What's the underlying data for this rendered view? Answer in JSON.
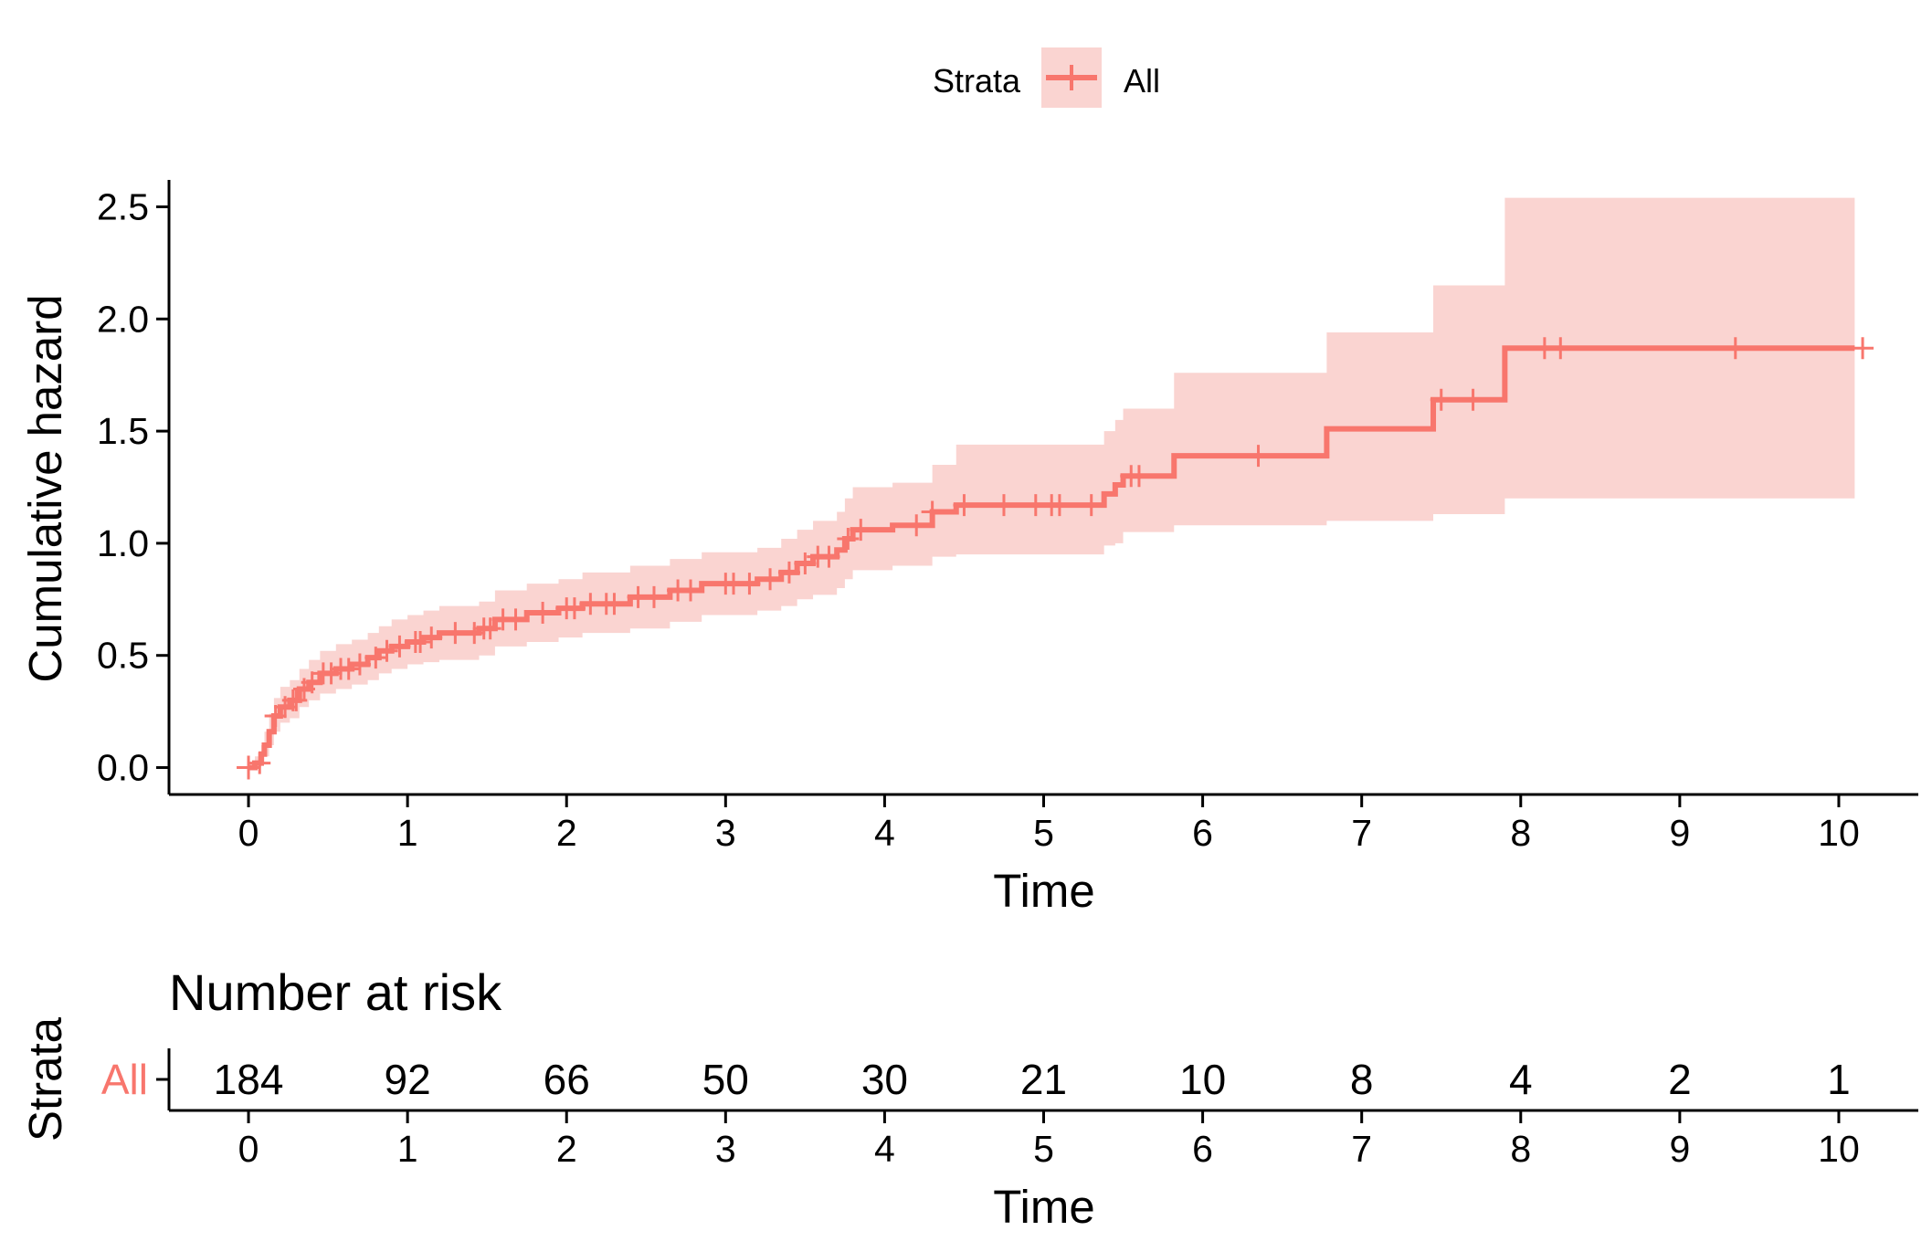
{
  "legend": {
    "title": "Strata",
    "entries": [
      {
        "label": "All",
        "color": "#F8766D"
      }
    ]
  },
  "colors": {
    "line": "#F8766D",
    "ribbon": "#FAD4D1",
    "axis": "#000000"
  },
  "chart_data": {
    "type": "line",
    "subtype": "step",
    "title": "",
    "xlabel": "Time",
    "ylabel": "Cumulative hazard",
    "xlim": [
      -0.5,
      10.5
    ],
    "ylim": [
      -0.12,
      2.62
    ],
    "x_ticks": [
      0,
      1,
      2,
      3,
      4,
      5,
      6,
      7,
      8,
      9,
      10
    ],
    "y_ticks": [
      0,
      0.5,
      1,
      1.5,
      2,
      2.5
    ],
    "y_tick_labels": [
      "0.0",
      "0.5",
      "1.0",
      "1.5",
      "2.0",
      "2.5"
    ],
    "grid": false,
    "legend_position": "top",
    "series": [
      {
        "name": "All",
        "color": "#F8766D",
        "steps": [
          [
            0,
            0
          ],
          [
            0.04,
            0.02
          ],
          [
            0.08,
            0.06
          ],
          [
            0.1,
            0.1
          ],
          [
            0.13,
            0.16
          ],
          [
            0.16,
            0.23
          ],
          [
            0.2,
            0.27
          ],
          [
            0.26,
            0.3
          ],
          [
            0.32,
            0.35
          ],
          [
            0.38,
            0.38
          ],
          [
            0.45,
            0.42
          ],
          [
            0.55,
            0.44
          ],
          [
            0.65,
            0.46
          ],
          [
            0.75,
            0.49
          ],
          [
            0.82,
            0.52
          ],
          [
            0.9,
            0.54
          ],
          [
            1.0,
            0.56
          ],
          [
            1.1,
            0.58
          ],
          [
            1.2,
            0.6
          ],
          [
            1.45,
            0.62
          ],
          [
            1.55,
            0.66
          ],
          [
            1.75,
            0.69
          ],
          [
            1.95,
            0.71
          ],
          [
            2.1,
            0.73
          ],
          [
            2.4,
            0.76
          ],
          [
            2.65,
            0.79
          ],
          [
            2.85,
            0.82
          ],
          [
            3.2,
            0.84
          ],
          [
            3.35,
            0.87
          ],
          [
            3.45,
            0.91
          ],
          [
            3.55,
            0.94
          ],
          [
            3.7,
            0.97
          ],
          [
            3.75,
            1.02
          ],
          [
            3.8,
            1.06
          ],
          [
            4.05,
            1.08
          ],
          [
            4.3,
            1.14
          ],
          [
            4.45,
            1.17
          ],
          [
            5.38,
            1.22
          ],
          [
            5.45,
            1.26
          ],
          [
            5.5,
            1.3
          ],
          [
            5.82,
            1.39
          ],
          [
            6.78,
            1.51
          ],
          [
            7.45,
            1.64
          ],
          [
            7.9,
            1.87
          ],
          [
            10.1,
            1.87
          ]
        ],
        "ci_steps": [
          [
            0,
            0,
            0
          ],
          [
            0.04,
            0.0,
            0.05
          ],
          [
            0.08,
            0.02,
            0.1
          ],
          [
            0.1,
            0.05,
            0.16
          ],
          [
            0.13,
            0.1,
            0.24
          ],
          [
            0.16,
            0.16,
            0.31
          ],
          [
            0.2,
            0.2,
            0.36
          ],
          [
            0.26,
            0.22,
            0.39
          ],
          [
            0.32,
            0.27,
            0.44
          ],
          [
            0.38,
            0.3,
            0.48
          ],
          [
            0.45,
            0.33,
            0.52
          ],
          [
            0.55,
            0.35,
            0.55
          ],
          [
            0.65,
            0.37,
            0.57
          ],
          [
            0.75,
            0.39,
            0.6
          ],
          [
            0.82,
            0.42,
            0.63
          ],
          [
            0.9,
            0.44,
            0.66
          ],
          [
            1.0,
            0.46,
            0.68
          ],
          [
            1.1,
            0.47,
            0.7
          ],
          [
            1.2,
            0.48,
            0.72
          ],
          [
            1.45,
            0.5,
            0.74
          ],
          [
            1.55,
            0.54,
            0.79
          ],
          [
            1.75,
            0.56,
            0.82
          ],
          [
            1.95,
            0.58,
            0.84
          ],
          [
            2.1,
            0.6,
            0.87
          ],
          [
            2.4,
            0.62,
            0.9
          ],
          [
            2.65,
            0.65,
            0.93
          ],
          [
            2.85,
            0.68,
            0.96
          ],
          [
            3.2,
            0.7,
            0.98
          ],
          [
            3.35,
            0.72,
            1.02
          ],
          [
            3.45,
            0.75,
            1.06
          ],
          [
            3.55,
            0.77,
            1.1
          ],
          [
            3.7,
            0.8,
            1.14
          ],
          [
            3.75,
            0.84,
            1.2
          ],
          [
            3.8,
            0.88,
            1.25
          ],
          [
            4.05,
            0.9,
            1.27
          ],
          [
            4.3,
            0.94,
            1.35
          ],
          [
            4.45,
            0.95,
            1.44
          ],
          [
            5.38,
            0.99,
            1.5
          ],
          [
            5.45,
            1.0,
            1.55
          ],
          [
            5.5,
            1.05,
            1.6
          ],
          [
            5.82,
            1.08,
            1.76
          ],
          [
            6.78,
            1.1,
            1.94
          ],
          [
            7.45,
            1.13,
            2.15
          ],
          [
            7.9,
            1.2,
            2.54
          ],
          [
            10.1,
            1.2,
            2.54
          ]
        ],
        "censor_times": [
          0.07,
          0.17,
          0.23,
          0.28,
          0.3,
          0.35,
          0.4,
          0.47,
          0.52,
          0.58,
          0.63,
          0.7,
          0.8,
          0.87,
          0.95,
          1.05,
          1.08,
          1.15,
          1.3,
          1.42,
          1.48,
          1.52,
          1.6,
          1.68,
          1.85,
          2.0,
          2.05,
          2.15,
          2.25,
          2.3,
          2.45,
          2.55,
          2.7,
          2.78,
          3.0,
          3.05,
          3.15,
          3.28,
          3.4,
          3.5,
          3.58,
          3.65,
          3.77,
          3.85,
          4.2,
          4.3,
          4.5,
          4.75,
          4.95,
          5.05,
          5.1,
          5.3,
          5.55,
          5.6,
          6.35,
          7.5,
          7.7,
          8.15,
          8.25,
          9.35,
          10.15
        ]
      }
    ]
  },
  "risk_table": {
    "title": "Number at risk",
    "ylabel": "Strata",
    "xlabel": "Time",
    "strata_label": "All",
    "x_ticks": [
      0,
      1,
      2,
      3,
      4,
      5,
      6,
      7,
      8,
      9,
      10
    ],
    "counts": [
      "184",
      "92",
      "66",
      "50",
      "30",
      "21",
      "10",
      "8",
      "4",
      "2",
      "1"
    ]
  }
}
